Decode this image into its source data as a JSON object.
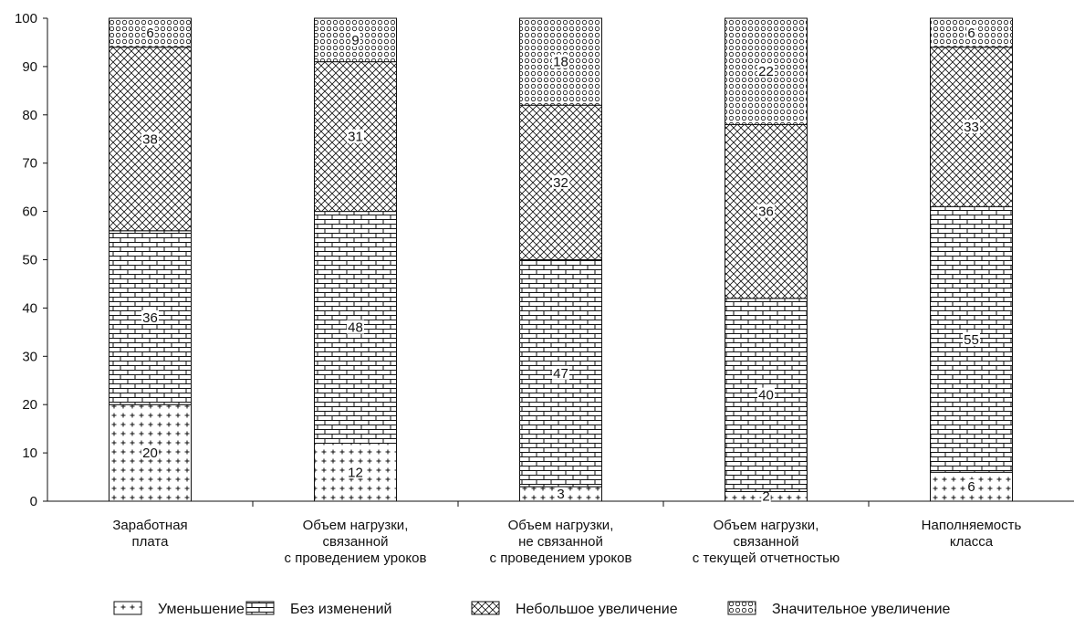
{
  "chart_data": {
    "type": "bar",
    "stacked": true,
    "title": "",
    "xlabel": "",
    "ylabel": "",
    "ylim": [
      0,
      100
    ],
    "yticks": [
      0,
      10,
      20,
      30,
      40,
      50,
      60,
      70,
      80,
      90,
      100
    ],
    "grid": false,
    "legend_position": "bottom",
    "categories": [
      [
        "Заработная",
        "плата"
      ],
      [
        "Объем нагрузки,",
        "связанной",
        "с проведением уроков"
      ],
      [
        "Объем нагрузки,",
        "не связанной",
        "с проведением уроков"
      ],
      [
        "Объем нагрузки,",
        "связанной",
        "с текущей отчетностью"
      ],
      [
        "Наполняемость",
        "класса"
      ]
    ],
    "series": [
      {
        "name": "Уменьшение",
        "pattern": "plus",
        "values": [
          20,
          12,
          3,
          2,
          6
        ]
      },
      {
        "name": "Без изменений",
        "pattern": "brick",
        "values": [
          36,
          48,
          47,
          40,
          55
        ]
      },
      {
        "name": "Небольшое увеличение",
        "pattern": "crosshatch",
        "values": [
          38,
          31,
          32,
          36,
          33
        ]
      },
      {
        "name": "Значительное увеличение",
        "pattern": "circles",
        "values": [
          6,
          9,
          18,
          22,
          6
        ]
      }
    ],
    "colors": {
      "stroke": "#111111",
      "fill": "#ffffff"
    }
  }
}
